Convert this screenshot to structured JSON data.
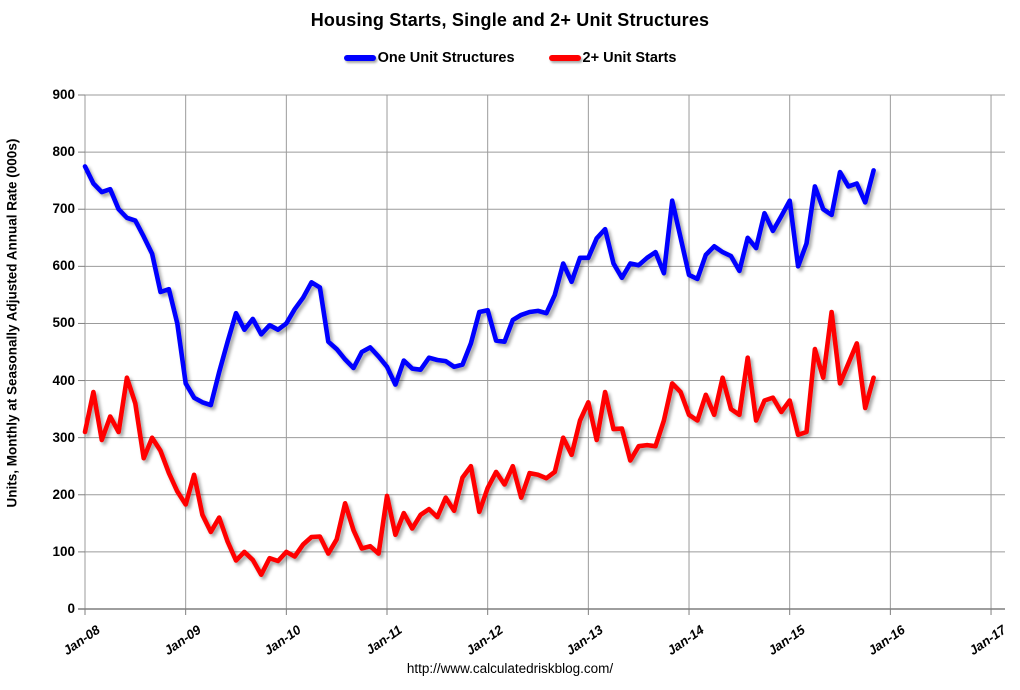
{
  "chart_data": {
    "type": "line",
    "title": "Housing Starts, Single and 2+ Unit Structures",
    "y_axis_label": "Units, Monthly at Seasonally Adjusted Annual Rate (000s)",
    "footer_url": "http://www.calculatedriskblog.com/",
    "ylim": [
      0,
      900
    ],
    "y_ticks": [
      0,
      100,
      200,
      300,
      400,
      500,
      600,
      700,
      800,
      900
    ],
    "x_ticks": [
      "Jan-08",
      "Jan-09",
      "Jan-10",
      "Jan-11",
      "Jan-12",
      "Jan-13",
      "Jan-14",
      "Jan-15",
      "Jan-16",
      "Jan-17"
    ],
    "x_start": "Jan-08",
    "x_end": "Nov-15",
    "frequency": "monthly",
    "grid": true,
    "legend_position": "top-center",
    "colors": {
      "gridline": "#9b9b9b",
      "axis": "#7f7f7f",
      "text": "#000000",
      "background": "#ffffff"
    },
    "series": [
      {
        "name": "One Unit Structures",
        "color": "#0000FF",
        "values": [
          775,
          745,
          730,
          735,
          700,
          685,
          680,
          652,
          622,
          555,
          560,
          500,
          395,
          370,
          362,
          357,
          415,
          468,
          518,
          489,
          508,
          481,
          497,
          489,
          500,
          525,
          545,
          572,
          563,
          468,
          455,
          437,
          422,
          450,
          458,
          442,
          424,
          393,
          435,
          421,
          419,
          440,
          436,
          434,
          424,
          428,
          465,
          520,
          523,
          470,
          468,
          506,
          515,
          520,
          522,
          518,
          550,
          605,
          573,
          615,
          615,
          649,
          665,
          605,
          580,
          605,
          602,
          615,
          625,
          588,
          715,
          650,
          585,
          578,
          620,
          635,
          625,
          618,
          592,
          650,
          632,
          693,
          662,
          688,
          715,
          600,
          640,
          740,
          700,
          690,
          765,
          740,
          745,
          712,
          768
        ]
      },
      {
        "name": "2+ Unit Starts",
        "color": "#FF0000",
        "values": [
          310,
          380,
          296,
          337,
          310,
          405,
          360,
          264,
          300,
          277,
          238,
          206,
          183,
          235,
          165,
          135,
          160,
          118,
          85,
          100,
          86,
          60,
          89,
          84,
          100,
          92,
          113,
          126,
          127,
          97,
          122,
          185,
          138,
          106,
          110,
          97,
          198,
          130,
          168,
          141,
          165,
          175,
          161,
          195,
          172,
          230,
          250,
          170,
          212,
          240,
          218,
          250,
          195,
          238,
          235,
          229,
          240,
          300,
          270,
          330,
          362,
          296,
          380,
          315,
          316,
          260,
          285,
          287,
          285,
          330,
          395,
          380,
          340,
          330,
          375,
          340,
          405,
          350,
          340,
          440,
          330,
          365,
          370,
          345,
          365,
          305,
          310,
          455,
          405,
          520,
          395,
          430,
          465,
          352,
          405
        ]
      }
    ]
  }
}
